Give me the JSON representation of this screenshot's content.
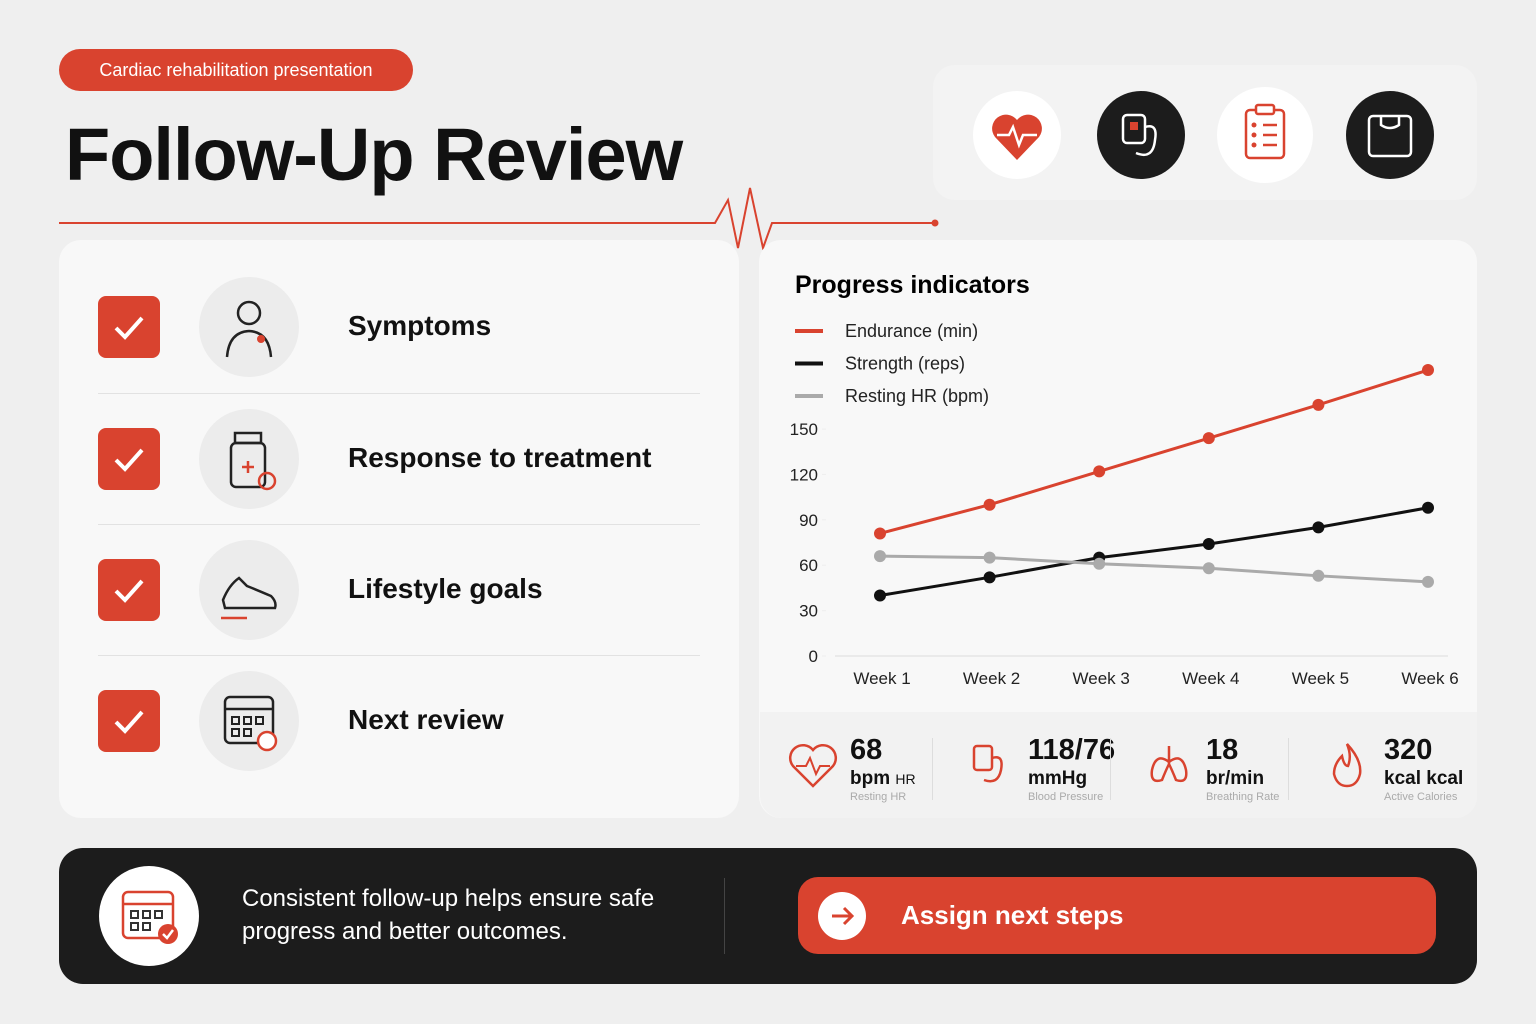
{
  "header": {
    "tag": "Cardiac rehabilitation presentation",
    "title": "Follow-Up Review"
  },
  "checklist": [
    {
      "label": "Symptoms"
    },
    {
      "label": "Response to treatment"
    },
    {
      "label": "Lifestyle goals"
    },
    {
      "label": "Next review"
    }
  ],
  "chart_data": {
    "type": "line",
    "title": "Progress indicators",
    "categories": [
      "Week 1",
      "Week 2",
      "Week 3",
      "Week 4",
      "Week 5",
      "Week 6"
    ],
    "series": [
      {
        "name": "Endurance (min)",
        "color": "#d9432f",
        "values": [
          81,
          100,
          122,
          144,
          166,
          189
        ]
      },
      {
        "name": "Strength (reps)",
        "color": "#111111",
        "values": [
          40,
          52,
          65,
          74,
          85,
          98
        ]
      },
      {
        "name": "Resting HR (bpm)",
        "color": "#aaaaaa",
        "values": [
          66,
          65,
          61,
          58,
          53,
          49
        ]
      }
    ],
    "ylim": [
      0,
      190
    ],
    "yticks": [
      0,
      30,
      60,
      90,
      120,
      150
    ],
    "legend": "top-left"
  },
  "stats": [
    {
      "value": "68",
      "unit": "bpm",
      "suffix": "HR",
      "label": "Resting HR"
    },
    {
      "value": "118/76",
      "unit": "mmHg",
      "label": "Blood Pressure"
    },
    {
      "value": "18",
      "unit": "br/min",
      "label": "Breathing Rate"
    },
    {
      "value": "320",
      "unit": "kcal kcal",
      "label": "Active Calories"
    }
  ],
  "footer": {
    "message": "Consistent follow-up helps ensure safe progress and better outcomes.",
    "button": "Assign next steps"
  }
}
